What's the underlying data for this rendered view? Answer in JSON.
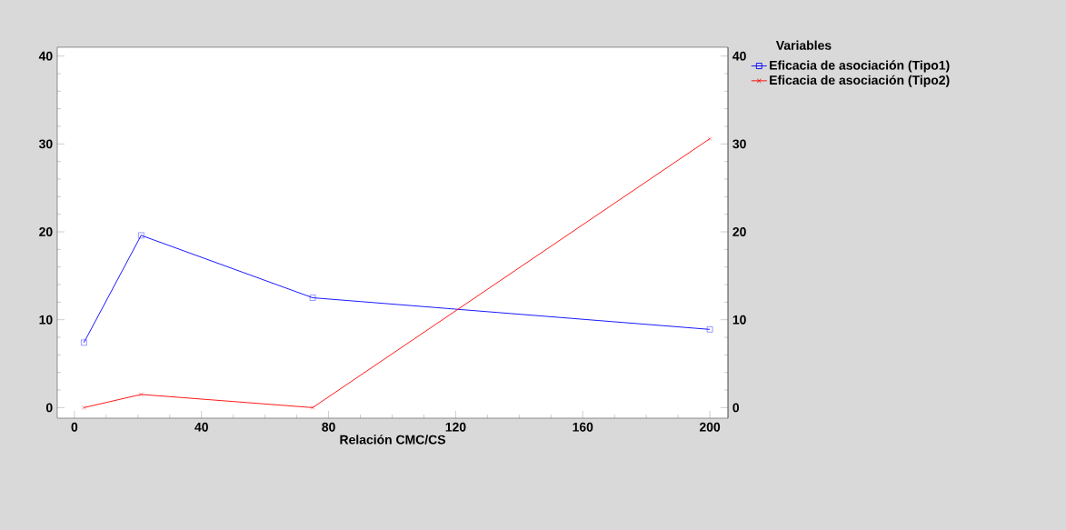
{
  "chart_data": {
    "type": "line",
    "xlabel": "Relación CMC/CS",
    "legend_title": "Variables",
    "legend": "top right",
    "grid": false,
    "xlim": [
      -5.4,
      205.7
    ],
    "xticks": [
      0,
      40,
      80,
      120,
      160,
      200
    ],
    "ylim": [
      -1.2,
      41
    ],
    "yticks": [
      0,
      10,
      20,
      30,
      40
    ],
    "y2lim": [
      -1.2,
      41
    ],
    "y2ticks": [
      0,
      10,
      20,
      30,
      40
    ],
    "series": [
      {
        "name": "Eficacia de asociación (Tipo1)",
        "color": "#0000ff",
        "marker": "square",
        "x": [
          3,
          21,
          75,
          200
        ],
        "values": [
          7.4,
          19.6,
          12.5,
          8.9
        ]
      },
      {
        "name": "Eficacia de asociación (Tipo2)",
        "color": "#ff0000",
        "marker": "cross",
        "x": [
          3,
          21,
          75,
          200
        ],
        "values": [
          0,
          1.5,
          0,
          30.6
        ]
      }
    ]
  }
}
